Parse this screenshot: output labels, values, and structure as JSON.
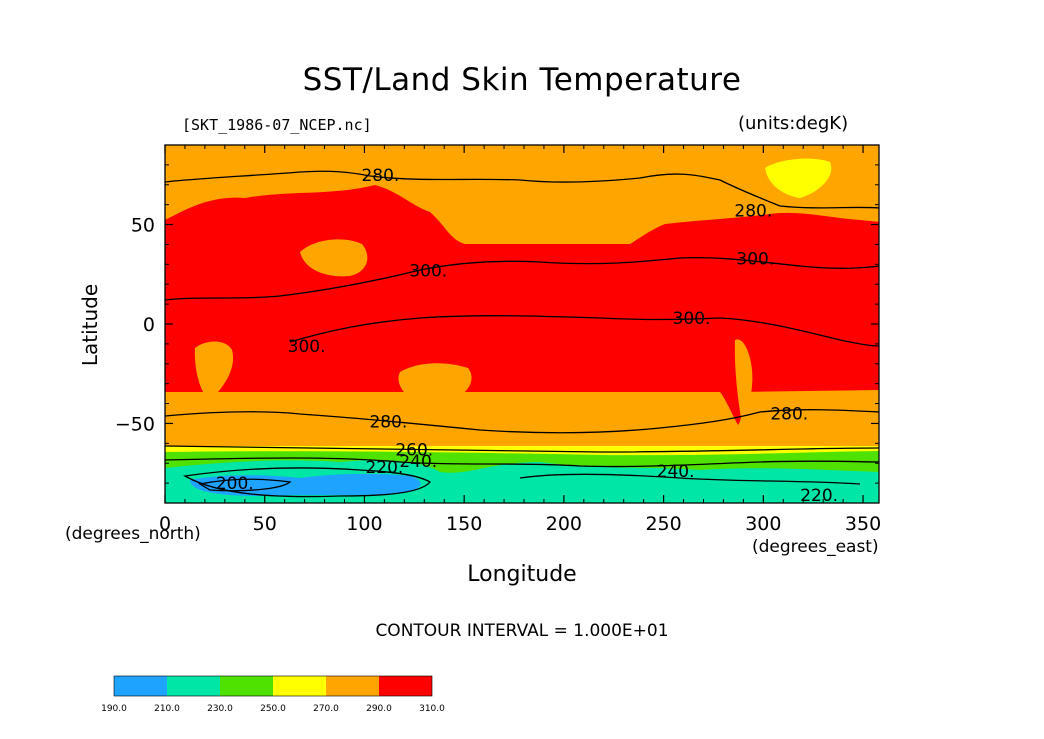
{
  "chart_data": {
    "type": "heatmap",
    "title": "SST/Land Skin Temperature",
    "subtitle": "[SKT_1986-07_NCEP.nc]",
    "units_label": "(units:degK)",
    "xlabel": "Longitude",
    "ylabel": "Latitude",
    "x_unit_label": "(degrees_east)",
    "y_unit_label": "(degrees_north)",
    "xlim": [
      0,
      358
    ],
    "ylim": [
      -90,
      90
    ],
    "x_ticks": [
      0,
      50,
      100,
      150,
      200,
      250,
      300,
      350
    ],
    "y_ticks": [
      -50,
      0,
      50
    ],
    "contour_interval_text": "CONTOUR INTERVAL = 1.000E+01",
    "contour_labels": [
      {
        "text": "280.",
        "lon": 108,
        "lat": 75
      },
      {
        "text": "280.",
        "lon": 295,
        "lat": 57
      },
      {
        "text": "300.",
        "lon": 132,
        "lat": 27
      },
      {
        "text": "300.",
        "lon": 296,
        "lat": 33
      },
      {
        "text": "300.",
        "lon": 264,
        "lat": 3
      },
      {
        "text": "300.",
        "lon": 71,
        "lat": -11
      },
      {
        "text": "280.",
        "lon": 112,
        "lat": -49
      },
      {
        "text": "280.",
        "lon": 313,
        "lat": -45
      },
      {
        "text": "260.",
        "lon": 125,
        "lat": -63
      },
      {
        "text": "220.",
        "lon": 110,
        "lat": -72
      },
      {
        "text": "240.",
        "lon": 127,
        "lat": -69
      },
      {
        "text": "240.",
        "lon": 256,
        "lat": -74
      },
      {
        "text": "200.",
        "lon": 35,
        "lat": -80
      },
      {
        "text": "220.",
        "lon": 328,
        "lat": -86
      }
    ],
    "colorbar": {
      "levels": [
        "190.0",
        "210.0",
        "230.0",
        "250.0",
        "270.0",
        "290.0",
        "310.0"
      ],
      "colors": [
        "#1ea3ff",
        "#00e6a6",
        "#4fe100",
        "#ffff00",
        "#ffa500",
        "#ff0000"
      ]
    }
  }
}
